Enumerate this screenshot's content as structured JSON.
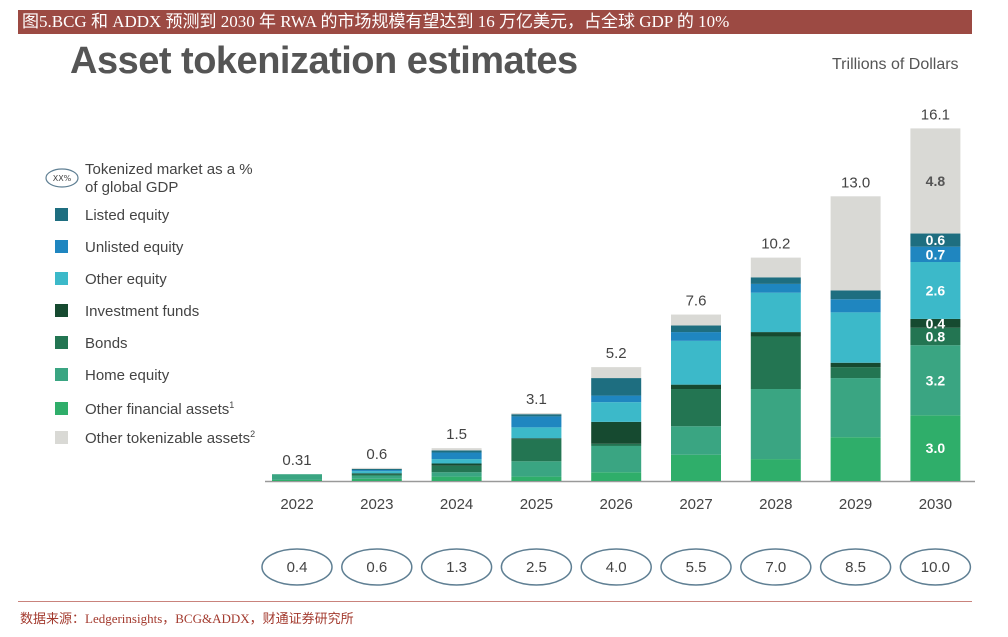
{
  "header": {
    "caption": "图5.BCG 和 ADDX 预测到 2030 年 RWA 的市场规模有望达到 16 万亿美元，占全球 GDP 的 10%"
  },
  "footer": {
    "source": "数据来源：Ledgerinsights，BCG&ADDX，财通证券研究所"
  },
  "chart_data": {
    "type": "bar",
    "stacked": true,
    "title": "Asset tokenization estimates",
    "unit": "Trillions of Dollars",
    "categories": [
      "2022",
      "2023",
      "2024",
      "2025",
      "2026",
      "2027",
      "2028",
      "2029",
      "2030"
    ],
    "totals": [
      "0.31",
      "0.6",
      "1.5",
      "3.1",
      "5.2",
      "7.6",
      "10.2",
      "13.0",
      "16.1"
    ],
    "gdp_share_label": "Tokenized market as a % of global GDP",
    "gdp_share_badge": "XX%",
    "gdp_share": [
      "0.4",
      "0.6",
      "1.3",
      "2.5",
      "4.0",
      "5.5",
      "7.0",
      "8.5",
      "10.0"
    ],
    "legend_placement": "left",
    "grid": false,
    "series": [
      {
        "name": "Other financial assets",
        "superscript": "1",
        "color": "#2fae6a",
        "values": [
          0.05,
          0.1,
          0.2,
          0.2,
          0.4,
          1.2,
          1.0,
          2.0,
          3.0
        ]
      },
      {
        "name": "Home equity",
        "color": "#3aa582",
        "values": [
          0.26,
          0.15,
          0.2,
          0.7,
          1.2,
          1.3,
          3.2,
          2.7,
          3.2
        ]
      },
      {
        "name": "Bonds",
        "color": "#237552",
        "values": [
          0,
          0.05,
          0.3,
          1.0,
          0.1,
          1.7,
          2.4,
          0.5,
          0.8
        ]
      },
      {
        "name": "Investment funds",
        "color": "#164a30",
        "values": [
          0,
          0.05,
          0.1,
          0.05,
          1.0,
          0.2,
          0.2,
          0.2,
          0.4
        ]
      },
      {
        "name": "Other equity",
        "color": "#3cb9c9",
        "values": [
          0,
          0.1,
          0.2,
          0.5,
          0.9,
          2.0,
          1.8,
          2.3,
          2.6
        ]
      },
      {
        "name": "Unlisted equity",
        "color": "#1f86c0",
        "values": [
          0,
          0.05,
          0.3,
          0.5,
          0.3,
          0.4,
          0.4,
          0.6,
          0.7
        ]
      },
      {
        "name": "Listed equity",
        "color": "#1e6e80",
        "values": [
          0,
          0.05,
          0.1,
          0.1,
          0.8,
          0.3,
          0.3,
          0.4,
          0.6
        ]
      },
      {
        "name": "Other tokenizable assets",
        "superscript": "2",
        "color": "#d9d9d5",
        "values": [
          0,
          0.05,
          0.1,
          0.05,
          0.5,
          0.5,
          0.9,
          4.3,
          4.8
        ]
      }
    ],
    "segment_labels_2030": [
      "3.0",
      "3.2",
      "0.8",
      "0.4",
      "2.6",
      "0.7",
      "0.6",
      "4.8"
    ]
  }
}
